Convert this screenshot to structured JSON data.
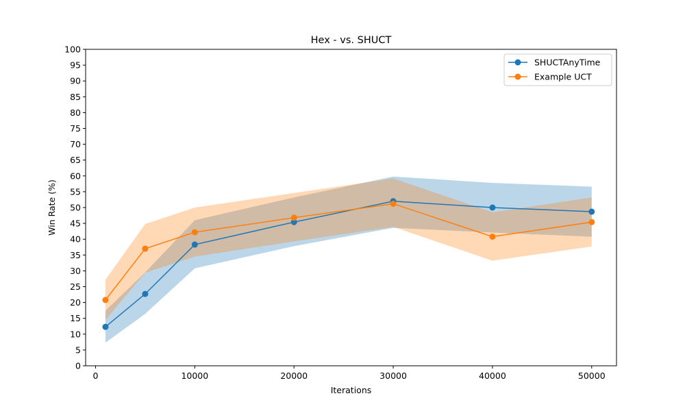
{
  "chart_data": {
    "type": "line",
    "title": "Hex - vs. SHUCT",
    "xlabel": "Iterations",
    "ylabel": "Win Rate (%)",
    "xlim": [
      -1000,
      52500
    ],
    "ylim": [
      0,
      100
    ],
    "x_ticks": [
      0,
      10000,
      20000,
      30000,
      40000,
      50000
    ],
    "y_ticks": [
      0,
      5,
      10,
      15,
      20,
      25,
      30,
      35,
      40,
      45,
      50,
      55,
      60,
      65,
      70,
      75,
      80,
      85,
      90,
      95,
      100
    ],
    "grid": false,
    "legend_position": "top-right",
    "x": [
      1000,
      5000,
      10000,
      20000,
      30000,
      40000,
      50000
    ],
    "series": [
      {
        "name": "SHUCTAnyTime",
        "color": "#1f77b4",
        "band_color": "#1f77b4",
        "values": [
          12.3,
          22.7,
          38.3,
          45.4,
          52.0,
          50.0,
          48.7
        ],
        "lower": [
          7.3,
          16.4,
          30.8,
          37.8,
          43.6,
          42.1,
          40.8
        ],
        "upper": [
          17.4,
          29.5,
          46.0,
          53.2,
          59.8,
          57.8,
          56.6
        ]
      },
      {
        "name": "Example UCT",
        "color": "#ff7f0e",
        "band_color": "#ff7f0e",
        "values": [
          20.8,
          37.0,
          42.2,
          46.8,
          51.2,
          40.8,
          45.4
        ],
        "lower": [
          14.5,
          29.4,
          34.5,
          39.3,
          43.9,
          33.2,
          37.7
        ],
        "upper": [
          27.2,
          44.8,
          50.0,
          54.6,
          59.2,
          48.5,
          53.2
        ]
      }
    ]
  }
}
